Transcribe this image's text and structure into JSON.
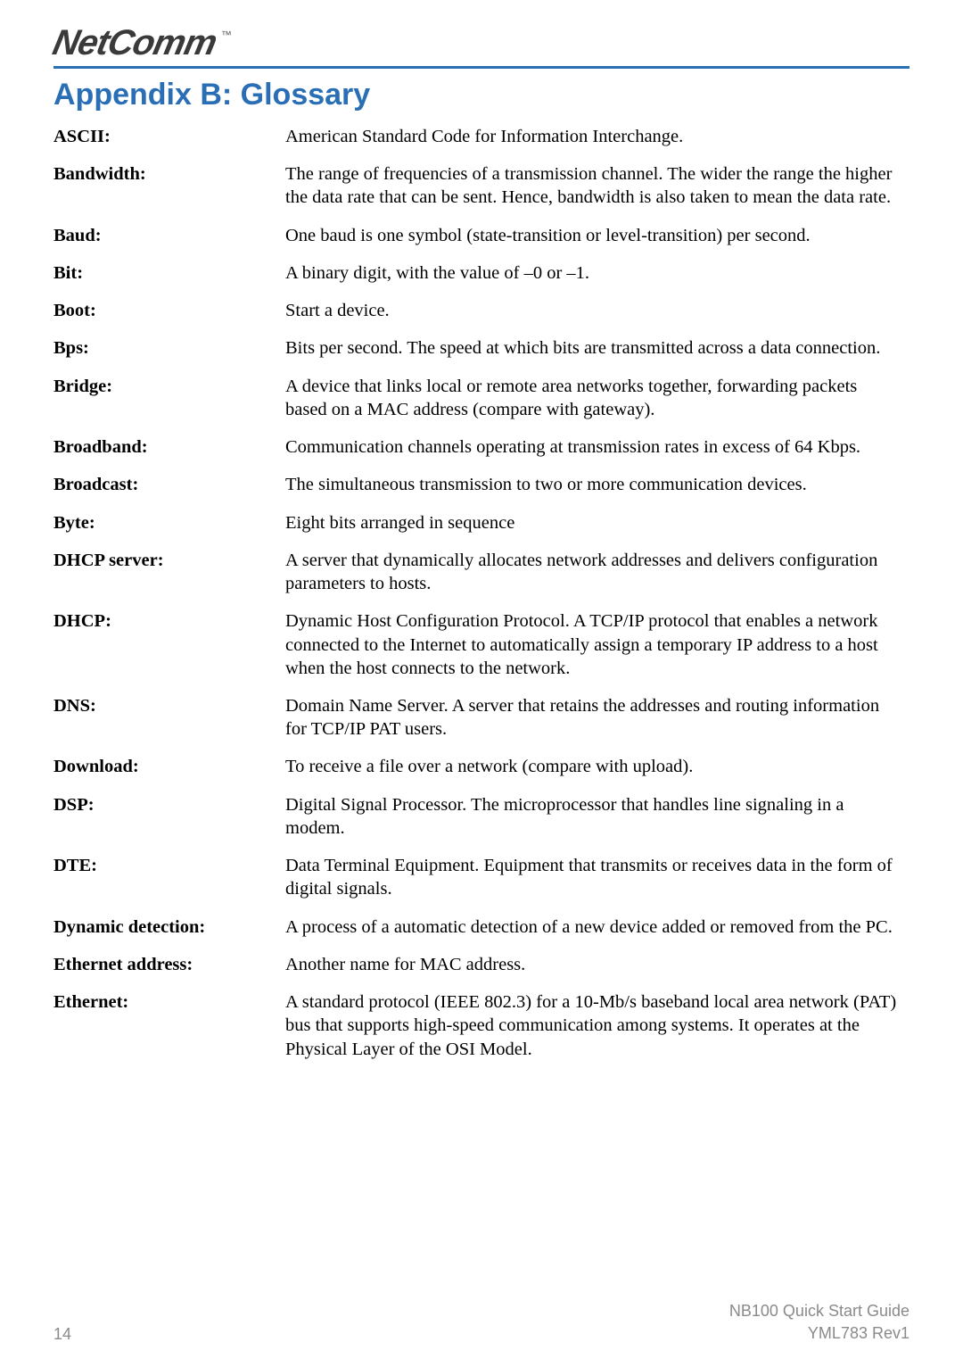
{
  "brand": {
    "name": "NetComm",
    "trademark": "™"
  },
  "colors": {
    "accent": "#2a6fb5",
    "text": "#000000",
    "muted": "#8a8a8a",
    "logo": "#3a3a3a"
  },
  "section_title": "Appendix B: Glossary",
  "glossary": [
    {
      "term": "ASCII:",
      "def": "American Standard Code for Information Interchange."
    },
    {
      "term": "Bandwidth:",
      "def": "The range of frequencies of a transmission channel. The wider the range the higher the data rate that can be sent. Hence, bandwidth is also taken to mean the data rate."
    },
    {
      "term": "Baud:",
      "def": "One baud is one symbol (state-transition or level-transition) per second."
    },
    {
      "term": "Bit:",
      "def": "A binary digit, with the value of –0 or –1."
    },
    {
      "term": "Boot:",
      "def": "Start a device."
    },
    {
      "term": "Bps:",
      "def": "Bits per second. The speed at which bits are transmitted across a data connection."
    },
    {
      "term": "Bridge:",
      "def": "A device that links local or remote area networks together, forwarding packets based on a MAC address (compare with gateway)."
    },
    {
      "term": "Broadband:",
      "def": "Communication channels operating at transmission rates in excess of 64 Kbps."
    },
    {
      "term": "Broadcast:",
      "def": "The simultaneous transmission to two or more communication devices."
    },
    {
      "term": "Byte:",
      "def": "Eight bits arranged in sequence"
    },
    {
      "term": "DHCP server:",
      "def": "A server that dynamically allocates network addresses and delivers configuration parameters to hosts."
    },
    {
      "term": "DHCP:",
      "def": "Dynamic Host Configuration Protocol. A TCP/IP protocol that enables a network connected to the Internet to automatically assign a temporary IP address to a host when the host connects to the network."
    },
    {
      "term": "DNS:",
      "def": "Domain Name Server. A server that retains the addresses and routing information for TCP/IP PAT users."
    },
    {
      "term": "Download:",
      "def": "To receive a file over a network (compare with upload)."
    },
    {
      "term": "DSP:",
      "def": "Digital Signal Processor. The microprocessor that handles line signaling in a modem."
    },
    {
      "term": "DTE:",
      "def": "Data Terminal Equipment. Equipment that transmits or receives data in the form of digital signals."
    },
    {
      "term": "Dynamic detection:",
      "def": "A process of a automatic detection of a new device added or removed from the PC."
    },
    {
      "term": "Ethernet address:",
      "def": "Another name for MAC address."
    },
    {
      "term": "Ethernet:",
      "def": "A standard protocol (IEEE 802.3) for a 10-Mb/s baseband local area network (PAT) bus that supports high-speed communication among systems. It operates at the Physical Layer of the OSI Model."
    }
  ],
  "footer": {
    "page_number": "14",
    "doc_title": "NB100 Quick Start Guide",
    "doc_rev": "YML783 Rev1"
  }
}
